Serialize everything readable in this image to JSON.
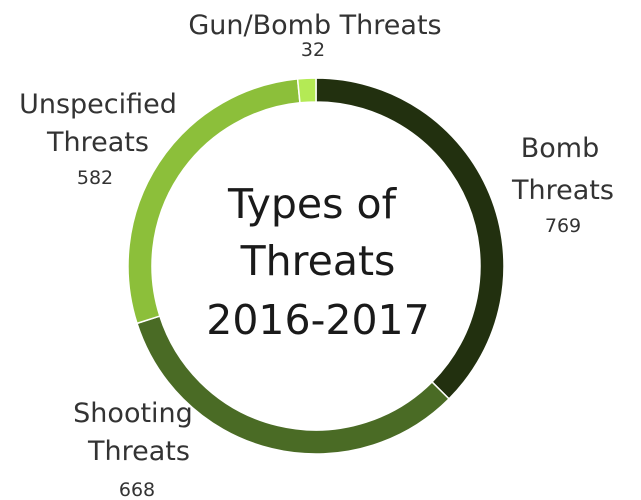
{
  "chart_data": {
    "type": "pie",
    "variant": "donut",
    "title_lines": [
      "Types of",
      "Threats",
      "2016-2017"
    ],
    "slices": [
      {
        "label_lines": [
          "Bomb",
          "Threats"
        ],
        "value": 769,
        "value_text": "769",
        "color": "#22300f"
      },
      {
        "label_lines": [
          "Shooting",
          "Threats"
        ],
        "value": 668,
        "value_text": "668",
        "color": "#4a6b25"
      },
      {
        "label_lines": [
          "Unspecified",
          "Threats"
        ],
        "value": 582,
        "value_text": "582",
        "color": "#8cbf3a"
      },
      {
        "label_lines": [
          "Gun/Bomb Threats"
        ],
        "value": 32,
        "value_text": "32",
        "color": "#b4ea55"
      }
    ]
  }
}
